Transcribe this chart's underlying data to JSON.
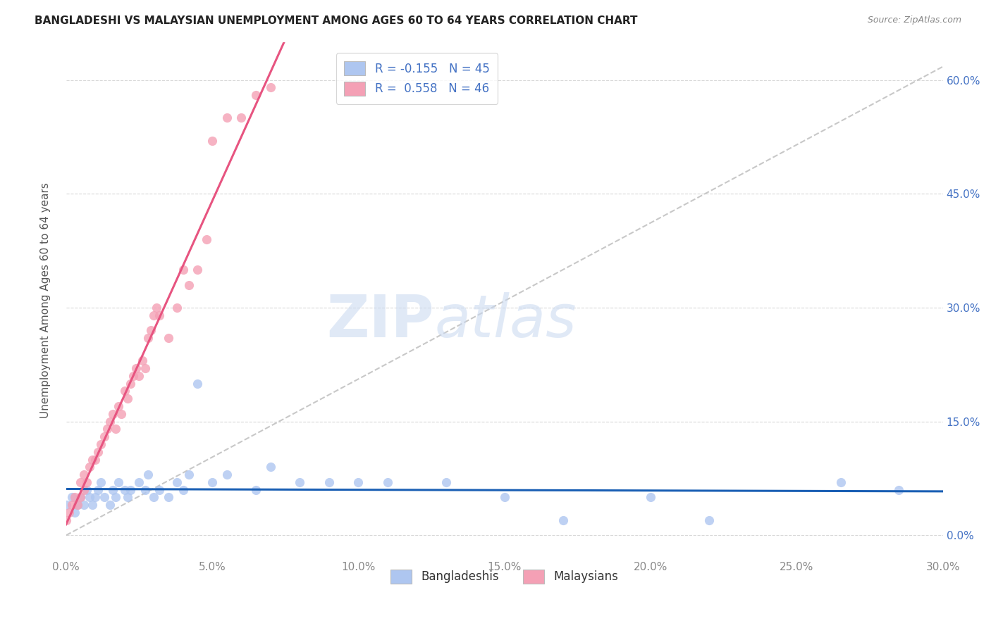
{
  "title": "BANGLADESHI VS MALAYSIAN UNEMPLOYMENT AMONG AGES 60 TO 64 YEARS CORRELATION CHART",
  "source": "Source: ZipAtlas.com",
  "ylabel_label": "Unemployment Among Ages 60 to 64 years",
  "xmin": 0.0,
  "xmax": 0.3,
  "ymin": -0.03,
  "ymax": 0.65,
  "legend_entry1": "R = -0.155   N = 45",
  "legend_entry2": "R =  0.558   N = 46",
  "legend_label1": "Bangladeshis",
  "legend_label2": "Malaysians",
  "blue_color": "#aec6f0",
  "pink_color": "#f4a0b5",
  "blue_line_color": "#1a5fb4",
  "pink_line_color": "#e75480",
  "blue_scatter_x": [
    0.0,
    0.002,
    0.003,
    0.004,
    0.005,
    0.006,
    0.007,
    0.008,
    0.009,
    0.01,
    0.011,
    0.012,
    0.013,
    0.015,
    0.016,
    0.017,
    0.018,
    0.02,
    0.021,
    0.022,
    0.025,
    0.027,
    0.028,
    0.03,
    0.032,
    0.035,
    0.038,
    0.04,
    0.042,
    0.045,
    0.05,
    0.055,
    0.065,
    0.07,
    0.08,
    0.09,
    0.1,
    0.11,
    0.13,
    0.15,
    0.17,
    0.2,
    0.22,
    0.265,
    0.285
  ],
  "blue_scatter_y": [
    0.04,
    0.05,
    0.03,
    0.04,
    0.05,
    0.04,
    0.06,
    0.05,
    0.04,
    0.05,
    0.06,
    0.07,
    0.05,
    0.04,
    0.06,
    0.05,
    0.07,
    0.06,
    0.05,
    0.06,
    0.07,
    0.06,
    0.08,
    0.05,
    0.06,
    0.05,
    0.07,
    0.06,
    0.08,
    0.2,
    0.07,
    0.08,
    0.06,
    0.09,
    0.07,
    0.07,
    0.07,
    0.07,
    0.07,
    0.05,
    0.02,
    0.05,
    0.02,
    0.07,
    0.06
  ],
  "pink_scatter_x": [
    0.0,
    0.001,
    0.002,
    0.003,
    0.004,
    0.005,
    0.005,
    0.006,
    0.006,
    0.007,
    0.008,
    0.009,
    0.01,
    0.011,
    0.012,
    0.013,
    0.014,
    0.015,
    0.016,
    0.017,
    0.018,
    0.019,
    0.02,
    0.021,
    0.022,
    0.023,
    0.024,
    0.025,
    0.026,
    0.027,
    0.028,
    0.029,
    0.03,
    0.031,
    0.032,
    0.035,
    0.038,
    0.04,
    0.042,
    0.045,
    0.048,
    0.05,
    0.055,
    0.06,
    0.065,
    0.07
  ],
  "pink_scatter_y": [
    0.02,
    0.03,
    0.04,
    0.05,
    0.04,
    0.05,
    0.07,
    0.06,
    0.08,
    0.07,
    0.09,
    0.1,
    0.1,
    0.11,
    0.12,
    0.13,
    0.14,
    0.15,
    0.16,
    0.14,
    0.17,
    0.16,
    0.19,
    0.18,
    0.2,
    0.21,
    0.22,
    0.21,
    0.23,
    0.22,
    0.26,
    0.27,
    0.29,
    0.3,
    0.29,
    0.26,
    0.3,
    0.35,
    0.33,
    0.35,
    0.39,
    0.52,
    0.55,
    0.55,
    0.58,
    0.59
  ],
  "watermark_zip": "ZIP",
  "watermark_atlas": "atlas",
  "dashed_line_color": "#c8c8c8",
  "grid_color": "#d8d8d8",
  "x_tick_vals": [
    0.0,
    0.05,
    0.1,
    0.15,
    0.2,
    0.25,
    0.3
  ],
  "x_tick_labels": [
    "0.0%",
    "5.0%",
    "10.0%",
    "15.0%",
    "20.0%",
    "25.0%",
    "30.0%"
  ],
  "y_tick_vals": [
    0.0,
    0.15,
    0.3,
    0.45,
    0.6
  ],
  "y_tick_labels": [
    "0.0%",
    "15.0%",
    "30.0%",
    "45.0%",
    "60.0%"
  ]
}
